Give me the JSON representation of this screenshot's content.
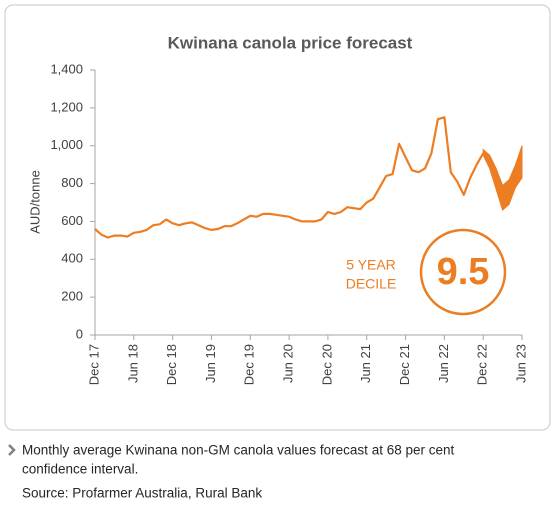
{
  "chart_data": {
    "type": "line",
    "title": "Kwinana canola price forecast",
    "ylabel": "AUD/tonne",
    "categories": [
      "Dec 17",
      null,
      null,
      null,
      null,
      null,
      "Jun 18",
      null,
      null,
      null,
      null,
      null,
      "Dec 18",
      null,
      null,
      null,
      null,
      null,
      "Jun 19",
      null,
      null,
      null,
      null,
      null,
      "Dec 19",
      null,
      null,
      null,
      null,
      null,
      "Jun 20",
      null,
      null,
      null,
      null,
      null,
      "Dec 20",
      null,
      null,
      null,
      null,
      null,
      "Jun 21",
      null,
      null,
      null,
      null,
      null,
      "Dec 21",
      null,
      null,
      null,
      null,
      null,
      "Jun 22",
      null,
      null,
      null,
      null,
      null,
      "Dec 22",
      null,
      null,
      null,
      null,
      null,
      "Jun 23"
    ],
    "series": [
      {
        "color": "#ed7d22",
        "values": [
          560,
          530,
          515,
          525,
          525,
          520,
          540,
          545,
          555,
          580,
          585,
          610,
          590,
          580,
          590,
          595,
          580,
          565,
          555,
          560,
          575,
          575,
          590,
          610,
          630,
          625,
          640,
          640,
          635,
          630,
          625,
          610,
          600,
          600,
          600,
          610,
          650,
          640,
          650,
          675,
          670,
          665,
          700,
          720,
          780,
          840,
          850,
          1010,
          940,
          870,
          860,
          880,
          960,
          1140,
          1150,
          860,
          810,
          740,
          830,
          900,
          960,
          null,
          null,
          null,
          null,
          null,
          null
        ]
      }
    ],
    "band": {
      "color": "#ed7d22",
      "upper": [
        null,
        null,
        null,
        null,
        null,
        null,
        null,
        null,
        null,
        null,
        null,
        null,
        null,
        null,
        null,
        null,
        null,
        null,
        null,
        null,
        null,
        null,
        null,
        null,
        null,
        null,
        null,
        null,
        null,
        null,
        null,
        null,
        null,
        null,
        null,
        null,
        null,
        null,
        null,
        null,
        null,
        null,
        null,
        null,
        null,
        null,
        null,
        null,
        null,
        null,
        null,
        null,
        null,
        null,
        null,
        null,
        null,
        null,
        null,
        null,
        980,
        950,
        880,
        790,
        820,
        900,
        1000
      ],
      "lower": [
        null,
        null,
        null,
        null,
        null,
        null,
        null,
        null,
        null,
        null,
        null,
        null,
        null,
        null,
        null,
        null,
        null,
        null,
        null,
        null,
        null,
        null,
        null,
        null,
        null,
        null,
        null,
        null,
        null,
        null,
        null,
        null,
        null,
        null,
        null,
        null,
        null,
        null,
        null,
        null,
        null,
        null,
        null,
        null,
        null,
        null,
        null,
        null,
        null,
        null,
        null,
        null,
        null,
        null,
        null,
        null,
        null,
        null,
        null,
        null,
        950,
        880,
        770,
        660,
        690,
        780,
        830
      ]
    },
    "ylim": [
      0,
      1400
    ],
    "yticks": [
      0,
      200,
      400,
      600,
      800,
      {
        "value": 1000,
        "label": "1,000"
      },
      {
        "value": 1200,
        "label": "1,200"
      },
      {
        "value": 1400,
        "label": "1,400"
      }
    ],
    "grid": false,
    "annotation": {
      "lines": [
        "5 YEAR",
        "DECILE"
      ],
      "value": 9.5,
      "color": "#ed7d22"
    }
  },
  "caption": [
    "Monthly average Kwinana non-GM canola values forecast at 68 per cent",
    "confidence interval."
  ],
  "source": "Source: Profarmer Australia, Rural Bank"
}
